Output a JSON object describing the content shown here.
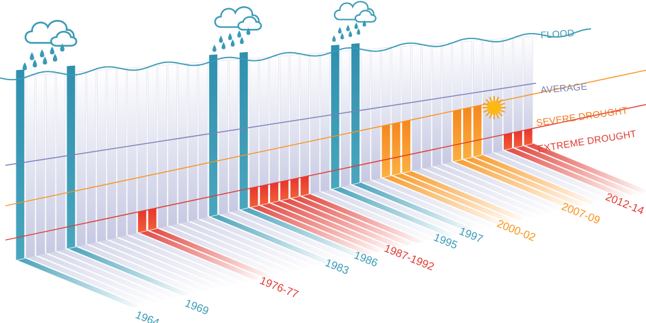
{
  "chart_data": {
    "type": "bar",
    "levels": [
      {
        "key": "flood",
        "label": "FLOOD",
        "color": "#3a9ab5"
      },
      {
        "key": "average",
        "label": "AVERAGE",
        "color": "#7b80b8"
      },
      {
        "key": "severe",
        "label": "SEVERE DROUGHT",
        "color": "#f07b22"
      },
      {
        "key": "extreme",
        "label": "EXTREME DROUGHT",
        "color": "#e03a32"
      }
    ],
    "events": [
      {
        "label": "1964",
        "type": "flood"
      },
      {
        "label": "1969",
        "type": "flood"
      },
      {
        "label": "1976-77",
        "type": "extreme"
      },
      {
        "label": "1983",
        "type": "flood"
      },
      {
        "label": "1986",
        "type": "flood"
      },
      {
        "label": "1987-1992",
        "type": "extreme"
      },
      {
        "label": "1995",
        "type": "flood"
      },
      {
        "label": "1997",
        "type": "flood"
      },
      {
        "label": "2000-02",
        "type": "severe"
      },
      {
        "label": "2007-09",
        "type": "severe"
      },
      {
        "label": "2012-14",
        "type": "extreme"
      }
    ],
    "colors": {
      "flood": "#3a9ab5",
      "extreme": "#e03a32",
      "severe": "#f7941d",
      "average_line": "#7b80b8",
      "background_bar": "#eef0f7",
      "water_line": "#3a9ab5"
    },
    "icons": [
      "rain-cloud-icon",
      "sun-icon"
    ]
  }
}
